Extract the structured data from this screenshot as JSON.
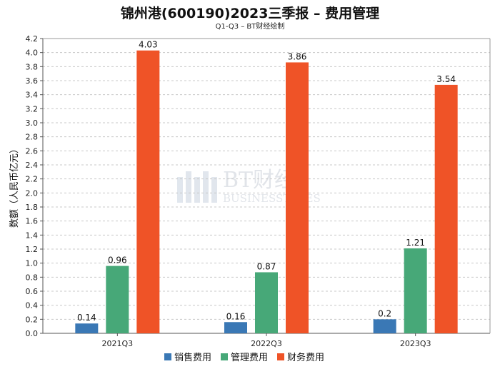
{
  "header": {
    "title": "锦州港(600190)2023三季报 – 费用管理",
    "subtitle": "Q1-Q3 – BT财经绘制"
  },
  "watermark": {
    "line1": "BT财经",
    "line2": "BUSINESSTIMES"
  },
  "chart_data": {
    "type": "bar",
    "title": "锦州港(600190)2023三季报 – 费用管理",
    "subtitle": "Q1-Q3 – BT财经绘制",
    "xlabel": "",
    "ylabel": "数额（人民币亿元）",
    "categories": [
      "2021Q3",
      "2022Q3",
      "2023Q3"
    ],
    "series": [
      {
        "name": "销售费用",
        "color": "#3a78b5",
        "values": [
          0.14,
          0.16,
          0.2
        ],
        "labels": [
          "0.14",
          "0.16",
          "0.2"
        ]
      },
      {
        "name": "管理费用",
        "color": "#47a878",
        "values": [
          0.96,
          0.87,
          1.21
        ],
        "labels": [
          "0.96",
          "0.87",
          "1.21"
        ]
      },
      {
        "name": "财务费用",
        "color": "#ef5327",
        "values": [
          4.03,
          3.86,
          3.54
        ],
        "labels": [
          "4.03",
          "3.86",
          "3.54"
        ]
      }
    ],
    "ylim": [
      0,
      4.2
    ],
    "yticks": [
      "0.0",
      "0.2",
      "0.4",
      "0.6",
      "0.8",
      "1.0",
      "1.2",
      "1.4",
      "1.6",
      "1.8",
      "2.0",
      "2.2",
      "2.4",
      "2.6",
      "2.8",
      "3.0",
      "3.2",
      "3.4",
      "3.6",
      "3.8",
      "4.0",
      "4.2"
    ],
    "grid": true,
    "legend": "bottom-center"
  }
}
